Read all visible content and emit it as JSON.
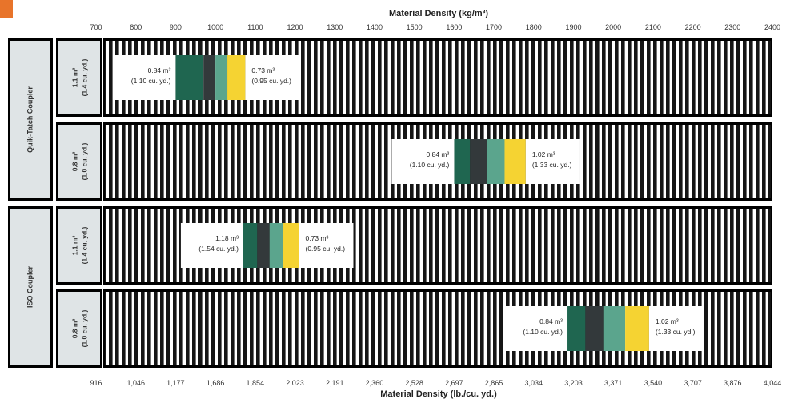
{
  "colors": {
    "dark_green": "#1f6650",
    "charcoal": "#33393b",
    "teal": "#5ba58d",
    "yellow": "#f5d332",
    "label_panel": "#dfe4e6",
    "stripe": "#151515",
    "accent_orange": "#e8742a"
  },
  "chart_data": {
    "type": "bar",
    "orientation": "horizontal",
    "top_axis": {
      "title": "Material Density (kg/m³)",
      "ticks": [
        "700",
        "800",
        "900",
        "1000",
        "1100",
        "1200",
        "1300",
        "1400",
        "1500",
        "1600",
        "1700",
        "1800",
        "1900",
        "2000",
        "2100",
        "2200",
        "2300",
        "2400"
      ],
      "range": [
        700,
        2400
      ]
    },
    "bottom_axis": {
      "title": "Material Density (lb./cu. yd.)",
      "ticks": [
        "916",
        "1,046",
        "1,177",
        "1,686",
        "1,854",
        "2,023",
        "2,191",
        "2,360",
        "2,528",
        "2,697",
        "2,865",
        "3,034",
        "3,203",
        "3,371",
        "3,540",
        "3,707",
        "3,876",
        "4,044"
      ]
    },
    "groups": [
      {
        "label": "Quik-Tatch Coupler",
        "rows": [
          0,
          1
        ]
      },
      {
        "label": "ISO Coupler",
        "rows": [
          2,
          3
        ]
      }
    ],
    "rows": [
      {
        "bucket_line1": "1.1 m³",
        "bucket_line2": "(1.4 cu. yd.)",
        "start_density": 900,
        "segment_ends": [
          970,
          1000,
          1030,
          1075
        ],
        "left_label_line1": "0.84 m³",
        "left_label_line2": "(1.10 cu. yd.)",
        "right_label_line1": "0.73 m³",
        "right_label_line2": "(0.95 cu. yd.)"
      },
      {
        "bucket_line1": "0.8 m³",
        "bucket_line2": "(1.0 cu. yd.)",
        "start_density": 1600,
        "segment_ends": [
          1640,
          1682,
          1727,
          1780
        ],
        "left_label_line1": "0.84 m³",
        "left_label_line2": "(1.10 cu. yd.)",
        "right_label_line1": "1.02 m³",
        "right_label_line2": "(1.33 cu. yd.)"
      },
      {
        "bucket_line1": "1.1 m³",
        "bucket_line2": "(1.4 cu. yd.)",
        "start_density": 1070,
        "segment_ends": [
          1105,
          1136,
          1170,
          1210
        ],
        "left_label_line1": "1.18 m³",
        "left_label_line2": "(1.54 cu. yd.)",
        "right_label_line1": "0.73 m³",
        "right_label_line2": "(0.95 cu. yd.)"
      },
      {
        "bucket_line1": "0.8 m³",
        "bucket_line2": "(1.0 cu. yd.)",
        "start_density": 1885,
        "segment_ends": [
          1930,
          1975,
          2030,
          2090
        ],
        "left_label_line1": "0.84 m³",
        "left_label_line2": "(1.10 cu. yd.)",
        "right_label_line1": "1.02 m³",
        "right_label_line2": "(1.33 cu. yd.)"
      }
    ]
  }
}
